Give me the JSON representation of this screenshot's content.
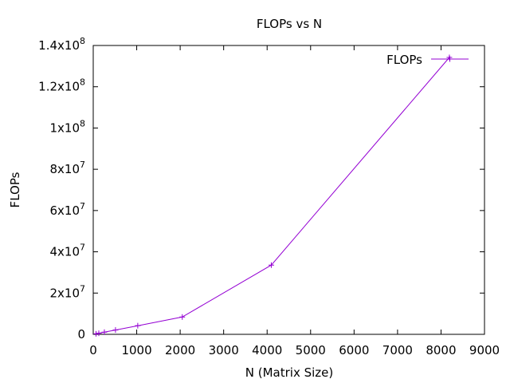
{
  "chart_data": {
    "type": "line",
    "title": "FLOPs vs N",
    "xlabel": "N (Matrix Size)",
    "ylabel": "FLOPs",
    "xlim": [
      0,
      9000
    ],
    "ylim": [
      0,
      140000000
    ],
    "x_ticks": [
      {
        "value": 0,
        "label": "0"
      },
      {
        "value": 1000,
        "label": "1000"
      },
      {
        "value": 2000,
        "label": "2000"
      },
      {
        "value": 3000,
        "label": "3000"
      },
      {
        "value": 4000,
        "label": "4000"
      },
      {
        "value": 5000,
        "label": "5000"
      },
      {
        "value": 6000,
        "label": "6000"
      },
      {
        "value": 7000,
        "label": "7000"
      },
      {
        "value": 8000,
        "label": "8000"
      },
      {
        "value": 9000,
        "label": "9000"
      }
    ],
    "y_ticks": [
      {
        "value": 0,
        "mant": "0",
        "exp": ""
      },
      {
        "value": 20000000,
        "mant": "2x10",
        "exp": "7"
      },
      {
        "value": 40000000,
        "mant": "4x10",
        "exp": "7"
      },
      {
        "value": 60000000,
        "mant": "6x10",
        "exp": "7"
      },
      {
        "value": 80000000,
        "mant": "8x10",
        "exp": "7"
      },
      {
        "value": 100000000,
        "mant": "1x10",
        "exp": "8"
      },
      {
        "value": 120000000,
        "mant": "1.2x10",
        "exp": "8"
      },
      {
        "value": 140000000,
        "mant": "1.4x10",
        "exp": "8"
      }
    ],
    "grid": false,
    "legend_position": "top-right",
    "series": [
      {
        "name": "FLOPs",
        "color": "#9400d3",
        "marker": "plus",
        "points": [
          {
            "x": 64,
            "y": 262144
          },
          {
            "x": 128,
            "y": 524288
          },
          {
            "x": 256,
            "y": 1048576
          },
          {
            "x": 512,
            "y": 2097152
          },
          {
            "x": 1024,
            "y": 4194304
          },
          {
            "x": 2048,
            "y": 8388608
          },
          {
            "x": 4096,
            "y": 33554432
          },
          {
            "x": 8192,
            "y": 134217728
          }
        ]
      }
    ]
  }
}
